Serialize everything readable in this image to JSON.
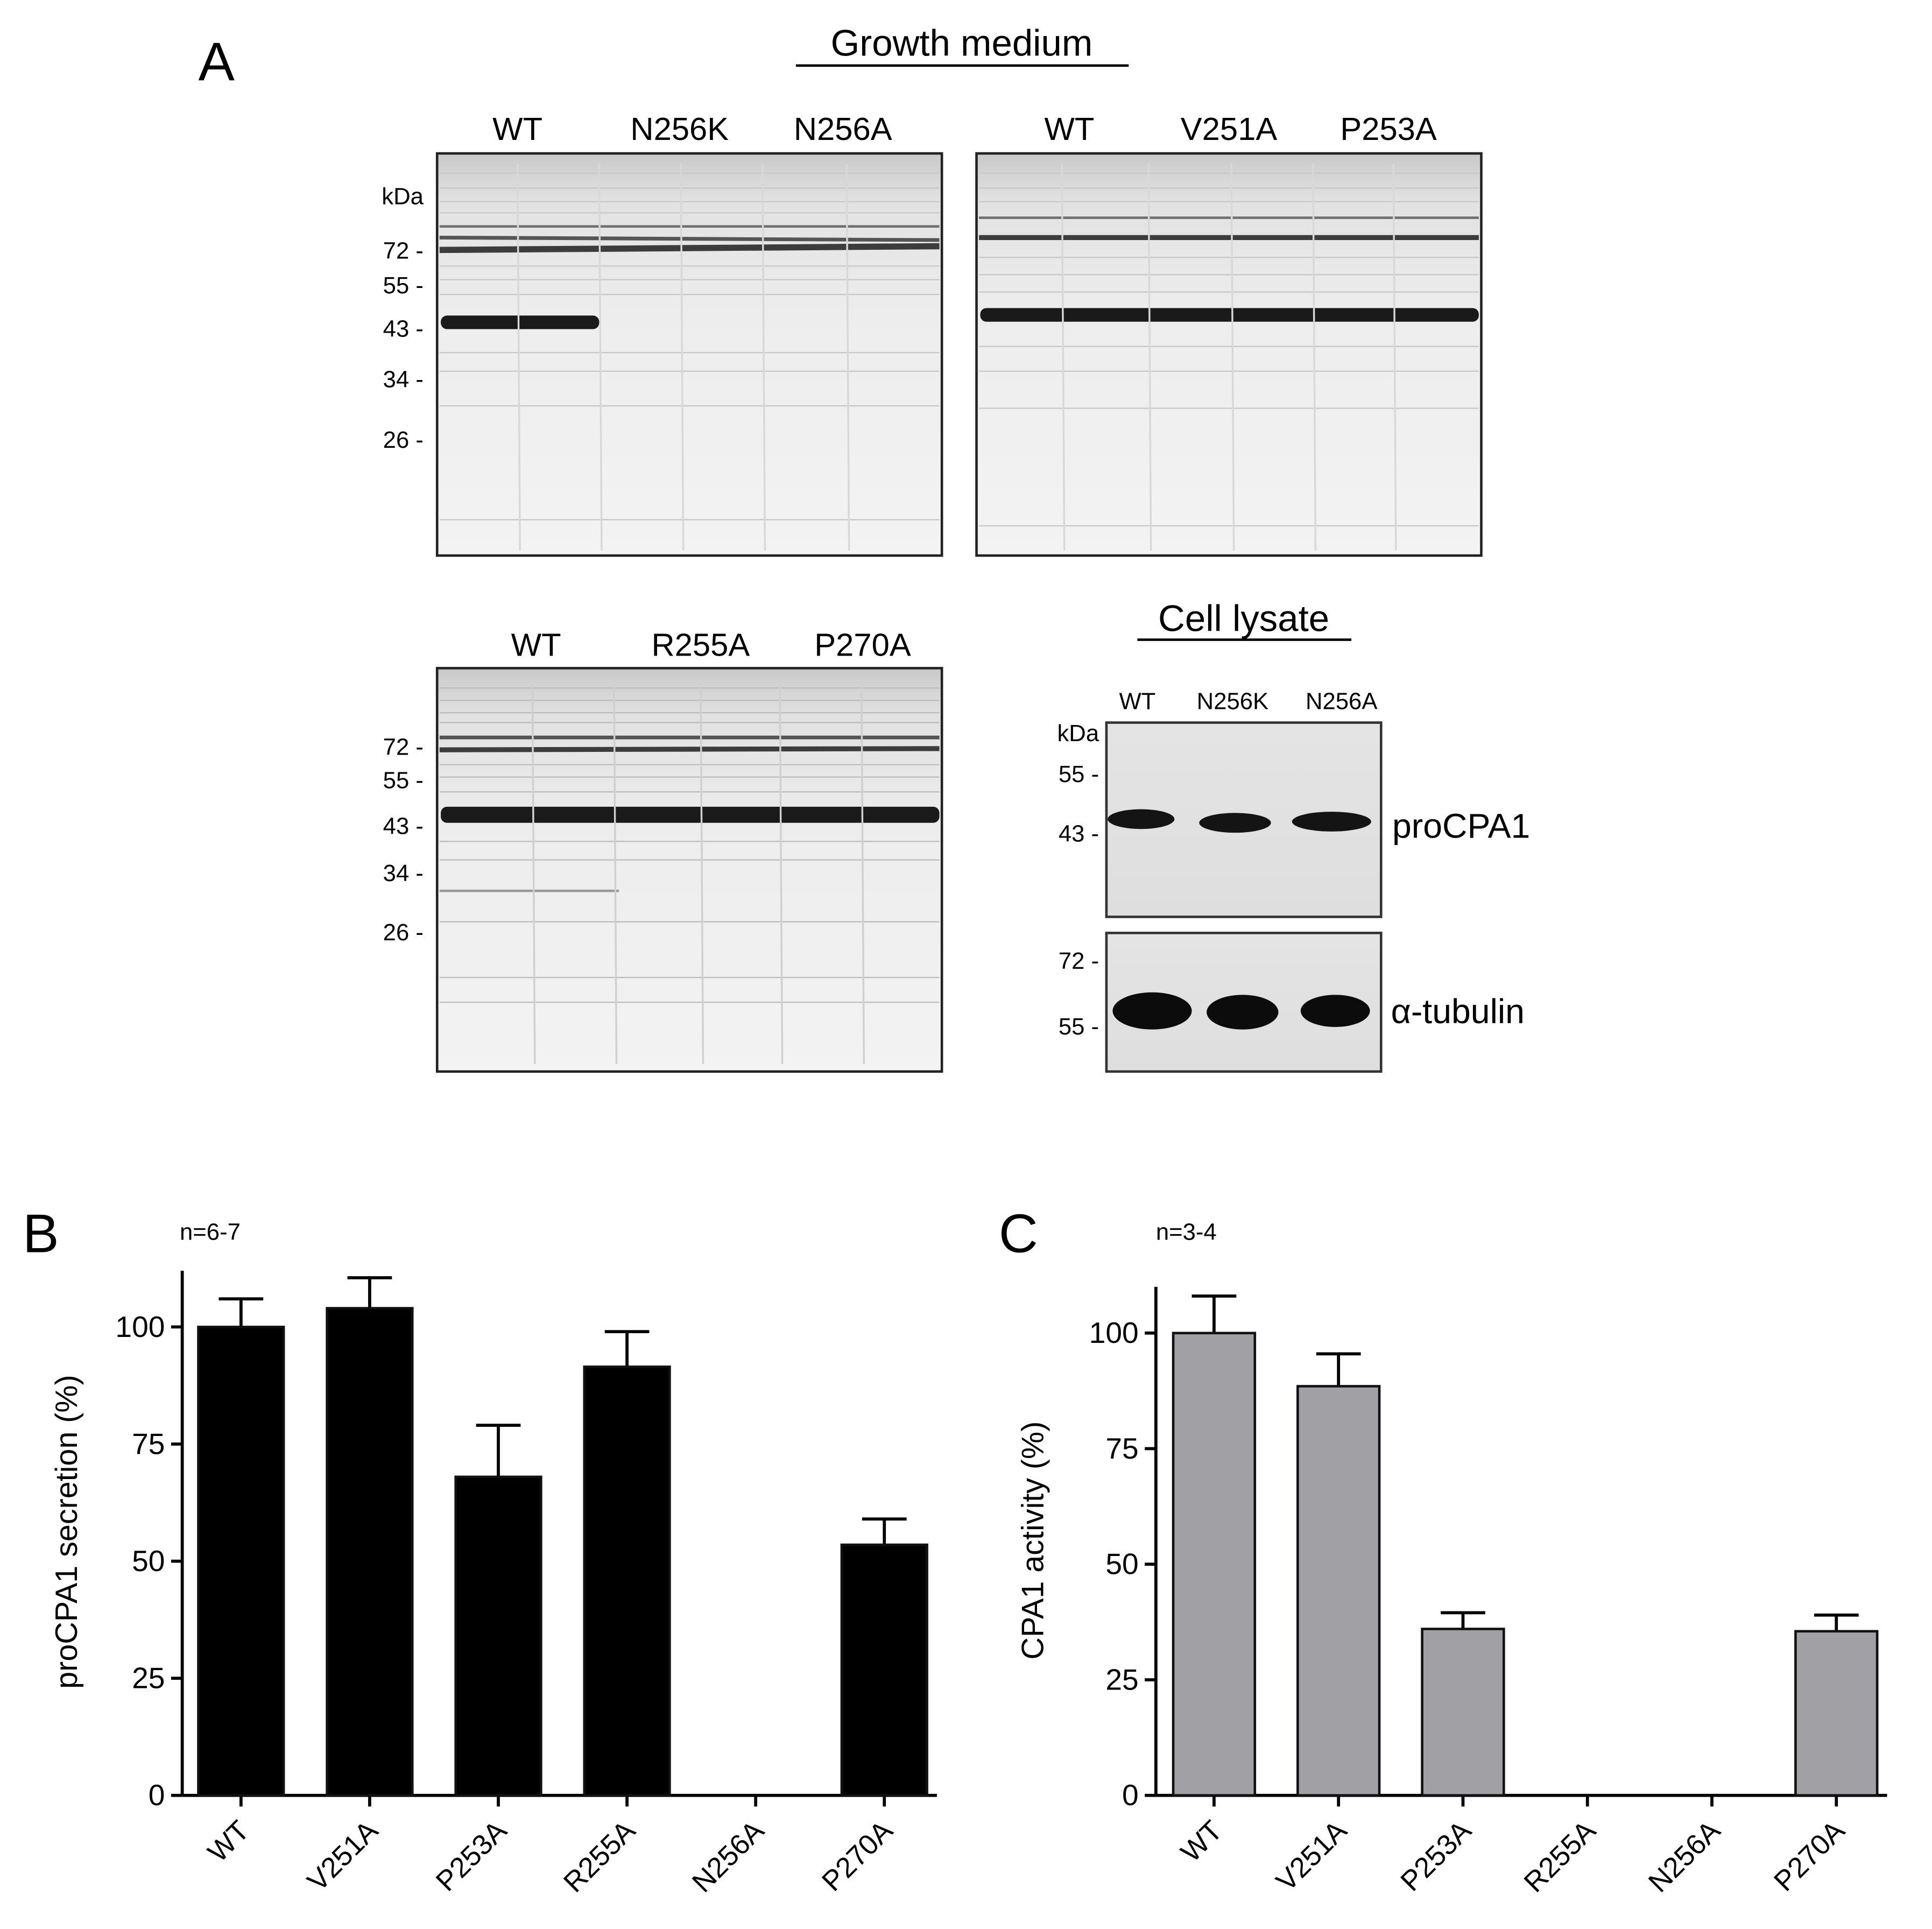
{
  "panel_a": {
    "letter": "A",
    "growth_medium_title": "Growth medium",
    "cell_lysate_title": "Cell lysate",
    "gel1": {
      "lanes": [
        "WT",
        "N256K",
        "N256A"
      ],
      "kda_label": "kDa",
      "markers": [
        "72 -",
        "55 -",
        "43 -",
        "34 -",
        "26 -"
      ]
    },
    "gel2": {
      "lanes": [
        "WT",
        "V251A",
        "P253A"
      ]
    },
    "gel3": {
      "lanes": [
        "WT",
        "R255A",
        "P270A"
      ],
      "markers": [
        "72 -",
        "55 -",
        "43 -",
        "34 -",
        "26 -"
      ]
    },
    "blot": {
      "lanes": [
        "WT",
        "N256K",
        "N256A"
      ],
      "kda_label": "kDa",
      "top_markers": [
        "55 -",
        "43 -"
      ],
      "bottom_markers": [
        "72 -",
        "55 -"
      ],
      "top_label": "proCPA1",
      "bottom_label": "α-tubulin"
    }
  },
  "chart_data": [
    {
      "panel": "B",
      "type": "bar",
      "n_label": "n=6-7",
      "ylabel": "proCPA1 secretion (%)",
      "categories": [
        "WT",
        "V251A",
        "P253A",
        "R255A",
        "N256A",
        "P270A"
      ],
      "values": [
        100,
        104,
        68,
        91.5,
        0,
        53.5
      ],
      "errors": [
        6,
        6.5,
        11,
        7.5,
        0,
        5.5
      ],
      "yticks": [
        0,
        25,
        50,
        75,
        100
      ],
      "ylim": [
        0,
        112
      ],
      "bar_color": "#000000"
    },
    {
      "panel": "C",
      "type": "bar",
      "n_label": "n=3-4",
      "ylabel": "CPA1 activity (%)",
      "categories": [
        "WT",
        "V251A",
        "P253A",
        "R255A",
        "N256A",
        "P270A"
      ],
      "values": [
        100,
        88.5,
        36,
        0,
        0,
        35.5
      ],
      "errors": [
        8,
        7,
        3.5,
        0,
        0,
        3.5
      ],
      "yticks": [
        0,
        25,
        50,
        75,
        100
      ],
      "ylim": [
        0,
        110
      ],
      "bar_color": "#a0a0a5"
    }
  ]
}
